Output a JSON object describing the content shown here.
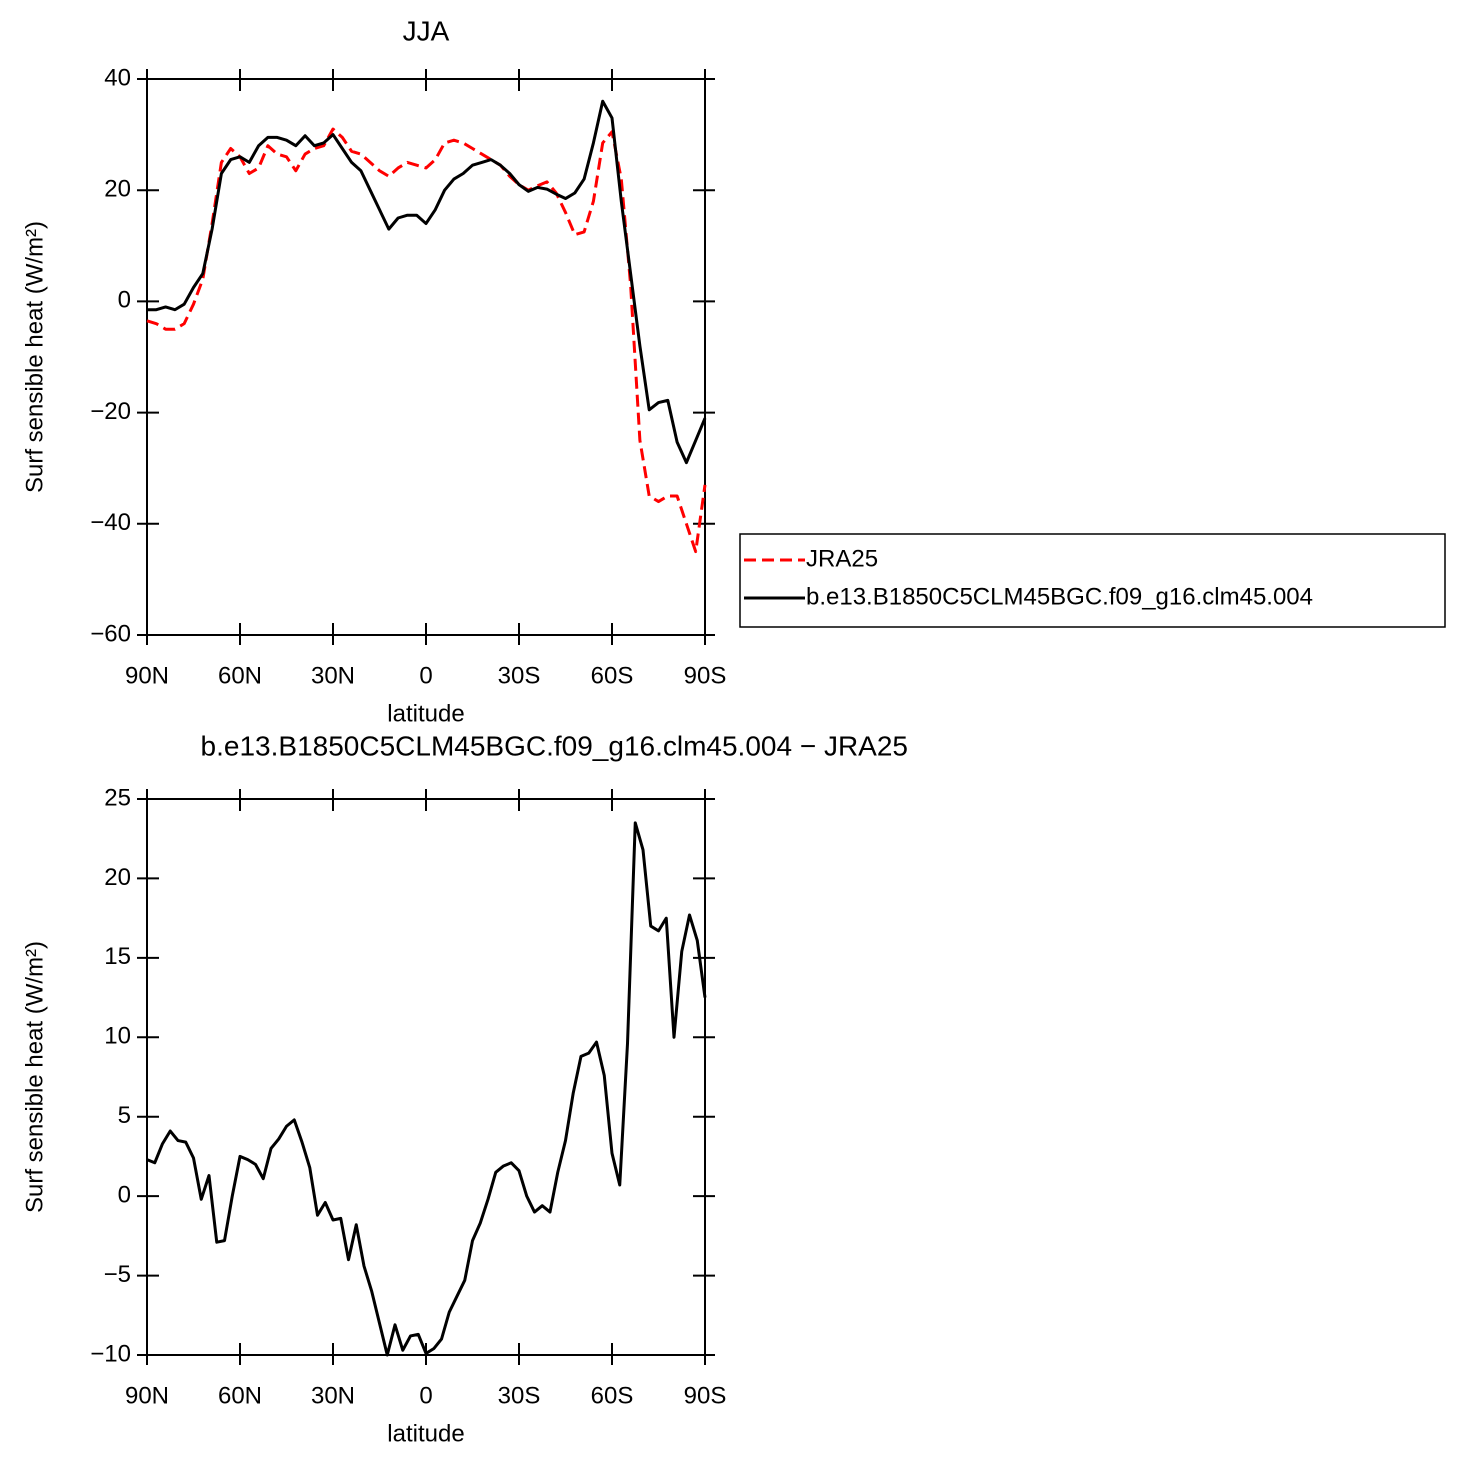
{
  "chart_data": [
    {
      "type": "line",
      "title": "JJA",
      "xlabel": "latitude",
      "ylabel": "Surf sensible heat (W/m²)",
      "x": [
        90,
        87,
        84,
        81,
        78,
        75,
        72,
        69,
        66,
        63,
        60,
        57,
        54,
        51,
        48,
        45,
        42,
        39,
        36,
        33,
        30,
        27,
        24,
        21,
        18,
        15,
        12,
        9,
        6,
        3,
        0,
        -3,
        -6,
        -9,
        -12,
        -15,
        -18,
        -21,
        -24,
        -27,
        -30,
        -33,
        -36,
        -39,
        -42,
        -45,
        -48,
        -51,
        -54,
        -57,
        -60,
        -63,
        -66,
        -69,
        -72,
        -75,
        -78,
        -81,
        -84,
        -87,
        -90
      ],
      "xlim": [
        90,
        -90
      ],
      "xticks": [
        {
          "value": 90,
          "label": "90N"
        },
        {
          "value": 60,
          "label": "60N"
        },
        {
          "value": 30,
          "label": "30N"
        },
        0,
        {
          "value": -30,
          "label": "30S"
        },
        {
          "value": -60,
          "label": "60S"
        },
        {
          "value": -90,
          "label": "90S"
        }
      ],
      "ylim": [
        -60,
        40
      ],
      "yticks": [
        {
          "value": -60,
          "label": "−60"
        },
        {
          "value": -40,
          "label": "−40"
        },
        {
          "value": -20,
          "label": "−20"
        },
        0,
        20,
        40
      ],
      "legend": "right",
      "series": [
        {
          "name": "JRA25",
          "color": "#ff0000",
          "dash": true,
          "values": [
            -3.5,
            -4,
            -5,
            -5,
            -4,
            -0.5,
            4,
            14,
            25,
            27.5,
            26,
            23,
            24,
            28,
            26.5,
            26,
            23.5,
            26.5,
            27.5,
            28,
            31,
            29.5,
            27,
            26.5,
            25,
            23.5,
            22.5,
            24,
            25,
            24.5,
            24,
            25.5,
            28.5,
            29,
            28.5,
            27.5,
            26.5,
            25.5,
            24.5,
            22.5,
            21,
            20,
            20.8,
            21.5,
            19.5,
            16,
            12,
            12.5,
            18,
            28.5,
            30.5,
            22,
            3,
            -25,
            -35,
            -36,
            -35,
            -35,
            -40,
            -45,
            -33
          ]
        },
        {
          "name": "b.e13.B1850C5CLM45BGC.f09_g16.clm45.004",
          "color": "#000000",
          "dash": false,
          "values": [
            -1.5,
            -1.5,
            -1,
            -1.5,
            -0.5,
            2.5,
            5,
            13,
            23,
            25.5,
            26,
            25,
            28,
            29.5,
            29.5,
            29,
            28,
            29.8,
            28,
            28.5,
            30,
            27.5,
            25,
            23.5,
            20,
            16.5,
            13,
            15,
            15.5,
            15.5,
            14,
            16.5,
            20,
            22,
            23,
            24.5,
            25,
            25.5,
            24.5,
            23,
            21,
            19.8,
            20.5,
            20.2,
            19.3,
            18.5,
            19.5,
            22,
            28.5,
            36,
            33,
            18,
            5,
            -8,
            -19.5,
            -18.2,
            -17.8,
            -25.3,
            -29,
            -25,
            -21
          ]
        }
      ]
    },
    {
      "type": "line",
      "title": "b.e13.B1850C5CLM45BGC.f09_g16.clm45.004 − JRA25",
      "xlabel": "latitude",
      "ylabel": "Surf sensible heat (W/m²)",
      "x": [
        90,
        87.5,
        85,
        82.5,
        80,
        77.5,
        75,
        72.5,
        70,
        67.5,
        65,
        62.5,
        60,
        57.5,
        55,
        52.5,
        50,
        47.5,
        45,
        42.5,
        40,
        37.5,
        35,
        32.5,
        30,
        27.5,
        25,
        22.5,
        20,
        17.5,
        15,
        12.5,
        10,
        7.5,
        5,
        2.5,
        0,
        -2.5,
        -5,
        -7.5,
        -10,
        -12.5,
        -15,
        -17.5,
        -20,
        -22.5,
        -25,
        -27.5,
        -30,
        -32.5,
        -35,
        -37.5,
        -40,
        -42.5,
        -45,
        -47.5,
        -50,
        -52.5,
        -55,
        -57.5,
        -60,
        -62.5,
        -65,
        -67.5,
        -70,
        -72.5,
        -75,
        -77.5,
        -80,
        -82.5,
        -85,
        -87.5,
        -90
      ],
      "xlim": [
        90,
        -90
      ],
      "xticks": [
        {
          "value": 90,
          "label": "90N"
        },
        {
          "value": 60,
          "label": "60N"
        },
        {
          "value": 30,
          "label": "30N"
        },
        0,
        {
          "value": -30,
          "label": "30S"
        },
        {
          "value": -60,
          "label": "60S"
        },
        {
          "value": -90,
          "label": "90S"
        }
      ],
      "ylim": [
        -10,
        25
      ],
      "yticks": [
        {
          "value": -10,
          "label": "−10"
        },
        {
          "value": -5,
          "label": "−5"
        },
        0,
        5,
        10,
        15,
        20,
        25
      ],
      "series": [
        {
          "color": "#000000",
          "dash": false,
          "values": [
            2.3,
            2.1,
            3.3,
            4.1,
            3.5,
            3.4,
            2.4,
            -0.2,
            1.3,
            -2.9,
            -2.8,
            0,
            2.5,
            2.3,
            2,
            1.1,
            3,
            3.6,
            4.4,
            4.8,
            3.4,
            1.8,
            -1.2,
            -0.4,
            -1.5,
            -1.4,
            -4,
            -1.8,
            -4.4,
            -6,
            -8,
            -10,
            -8.1,
            -9.7,
            -8.8,
            -8.7,
            -9.9,
            -9.6,
            -9,
            -7.3,
            -6.3,
            -5.3,
            -2.8,
            -1.7,
            -0.2,
            1.5,
            1.9,
            2.1,
            1.6,
            0,
            -1,
            -0.6,
            -1,
            1.5,
            3.5,
            6.5,
            8.8,
            9,
            9.7,
            7.6,
            2.7,
            0.7,
            9.6,
            23.5,
            21.8,
            17,
            16.7,
            17.5,
            10,
            15.4,
            17.7,
            16.1,
            12.5
          ]
        }
      ]
    }
  ]
}
